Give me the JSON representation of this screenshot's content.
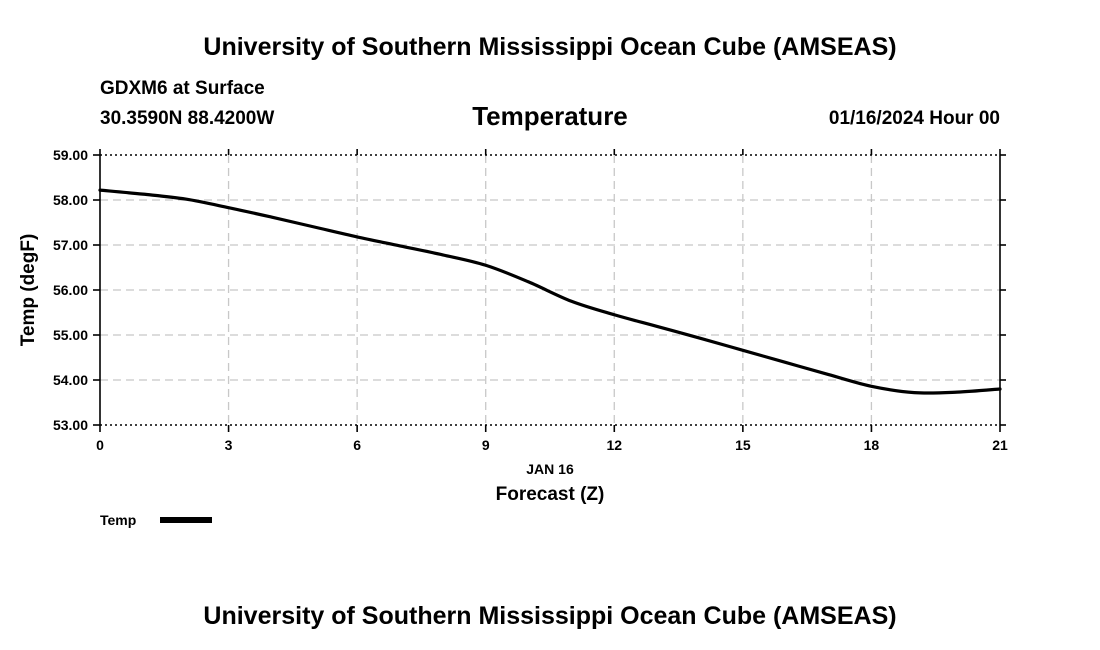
{
  "header": {
    "title": "University of Southern Mississippi Ocean Cube (AMSEAS)",
    "station": "GDXM6 at Surface",
    "coords": "30.3590N  88.4200W",
    "variable": "Temperature",
    "datetime": "01/16/2024 Hour 00"
  },
  "footer": {
    "title": "University of Southern Mississippi Ocean Cube (AMSEAS)"
  },
  "chart_data": {
    "type": "line",
    "title": "Temperature",
    "xlabel": "Forecast (Z)",
    "xdate_label": "JAN 16",
    "ylabel": "Temp (degF)",
    "xlim": [
      0,
      21
    ],
    "ylim": [
      53.0,
      59.0
    ],
    "xticks": [
      0,
      3,
      6,
      9,
      12,
      15,
      18,
      21
    ],
    "xtick_labels": [
      "0",
      "3",
      "6",
      "9",
      "12",
      "15",
      "18",
      "21"
    ],
    "yticks": [
      53.0,
      54.0,
      55.0,
      56.0,
      57.0,
      58.0,
      59.0
    ],
    "ytick_labels": [
      "53.00",
      "54.00",
      "55.00",
      "56.00",
      "57.00",
      "58.00",
      "59.00"
    ],
    "grid": true,
    "legend": {
      "label": "Temp",
      "placement": "bottom-left"
    },
    "series": [
      {
        "name": "Temp",
        "color": "#000000",
        "x": [
          0,
          1,
          2,
          3,
          4,
          5,
          6,
          7,
          8,
          9,
          10,
          11,
          12,
          13,
          14,
          15,
          16,
          17,
          18,
          19,
          20,
          21
        ],
        "y": [
          58.22,
          58.13,
          58.02,
          57.83,
          57.62,
          57.4,
          57.18,
          56.98,
          56.78,
          56.55,
          56.18,
          55.75,
          55.45,
          55.19,
          54.93,
          54.66,
          54.39,
          54.12,
          53.86,
          53.72,
          53.73,
          53.8
        ]
      }
    ]
  }
}
